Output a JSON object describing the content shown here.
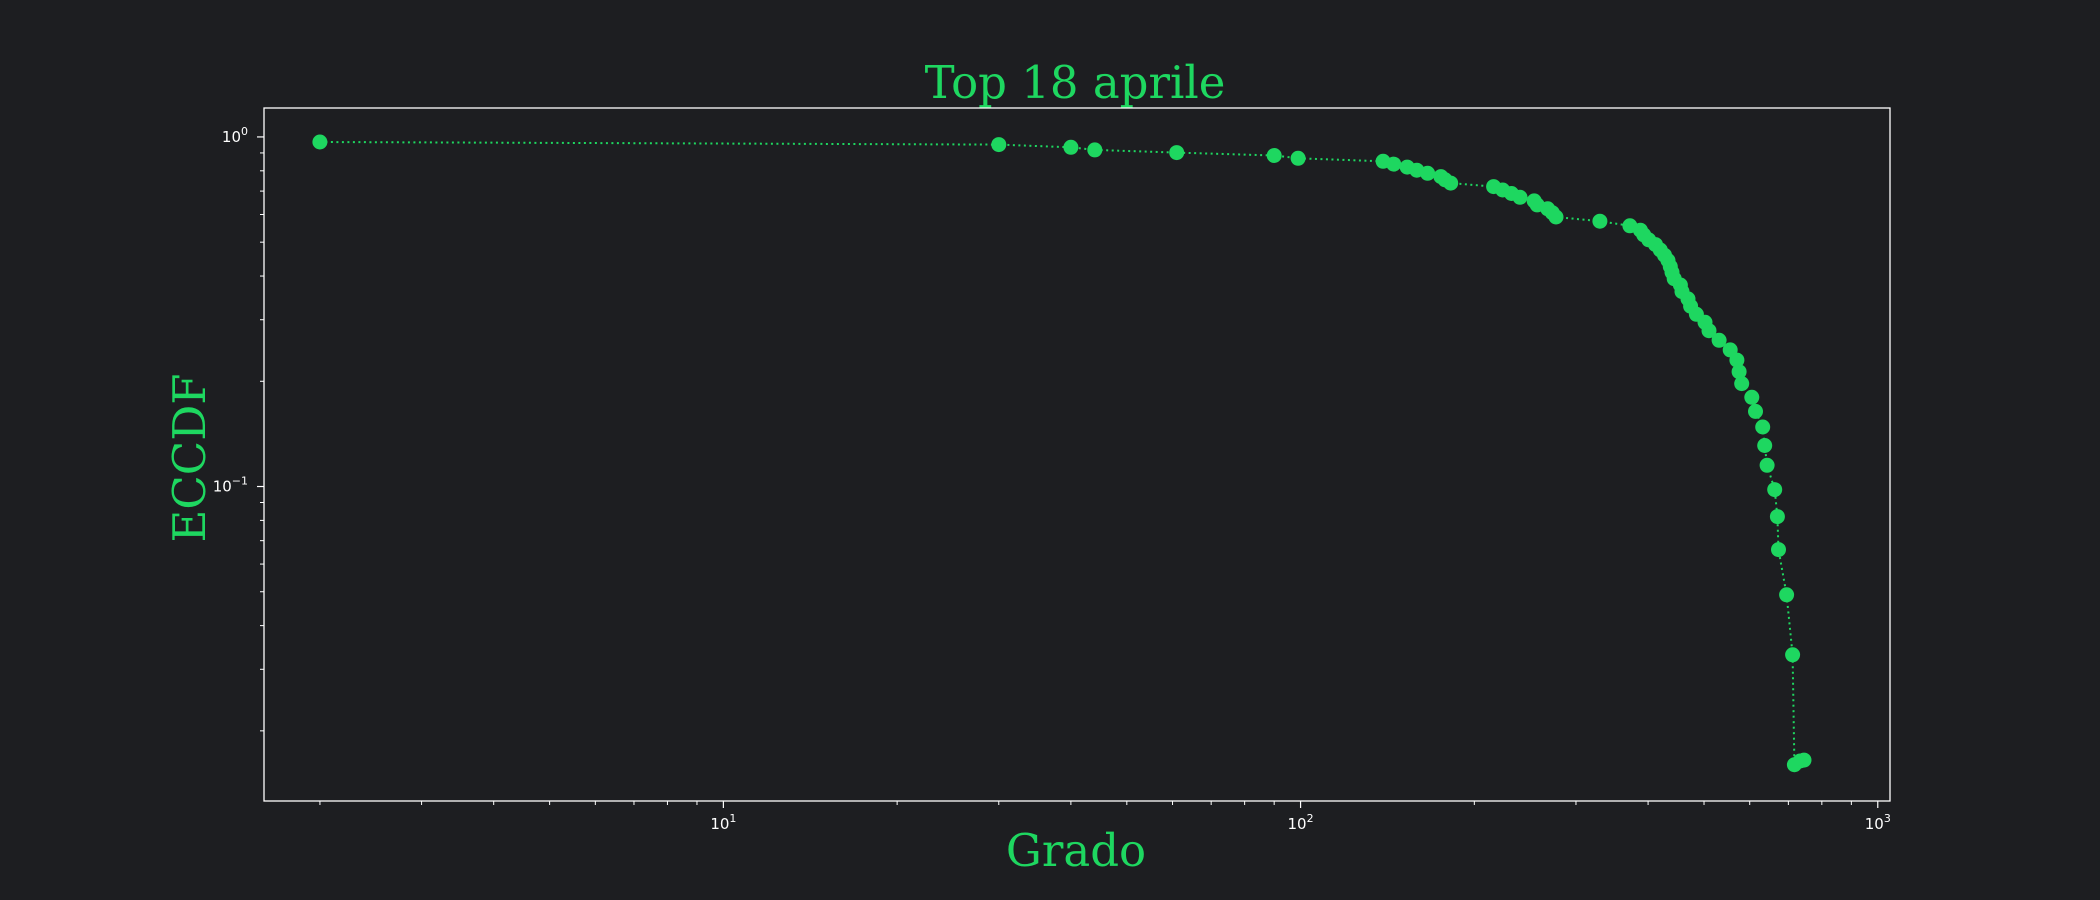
{
  "colors": {
    "background": "#1d1e21",
    "accent": "#1ed760",
    "axis": "#ffffff",
    "tick_text": "#ffffff"
  },
  "chart_data": {
    "type": "scatter",
    "title": "Top 18 aprile",
    "xlabel": "Grado",
    "ylabel": "ECCDF",
    "x_scale": "log",
    "y_scale": "log",
    "xlim": [
      1.6,
      1050
    ],
    "ylim": [
      0.0126,
      1.21
    ],
    "grid": false,
    "line_style": "dotted",
    "marker": "circle",
    "x_ticks": [
      {
        "value": 10,
        "label": "10",
        "exp": "1"
      },
      {
        "value": 100,
        "label": "10",
        "exp": "2"
      },
      {
        "value": 1000,
        "label": "10",
        "exp": "3"
      }
    ],
    "y_ticks": [
      {
        "value": 1,
        "label": "10",
        "exp": "0"
      },
      {
        "value": 0.1,
        "label": "10",
        "exp": "−1"
      }
    ],
    "series": [
      {
        "x": [
          2,
          30,
          40,
          44,
          61,
          90,
          99,
          139,
          145,
          153,
          159,
          166,
          175,
          178,
          182,
          216,
          224,
          232,
          240,
          254,
          257,
          268,
          273,
          277,
          330,
          372,
          388,
          393,
          401,
          412,
          420,
          427,
          433,
          437,
          440,
          444,
          455,
          458,
          469,
          474,
          485,
          502,
          510,
          531,
          555,
          570,
          575,
          581,
          605,
          614,
          632,
          637,
          643,
          663,
          670,
          673,
          695,
          712,
          717,
          734,
          745
        ],
        "y": [
          0.967,
          0.951,
          0.934,
          0.918,
          0.902,
          0.885,
          0.869,
          0.852,
          0.836,
          0.82,
          0.803,
          0.787,
          0.77,
          0.754,
          0.738,
          0.721,
          0.705,
          0.689,
          0.672,
          0.656,
          0.639,
          0.623,
          0.607,
          0.59,
          0.574,
          0.557,
          0.541,
          0.525,
          0.508,
          0.492,
          0.475,
          0.459,
          0.443,
          0.426,
          0.41,
          0.393,
          0.377,
          0.361,
          0.344,
          0.328,
          0.311,
          0.295,
          0.279,
          0.262,
          0.246,
          0.23,
          0.213,
          0.197,
          0.18,
          0.164,
          0.148,
          0.131,
          0.115,
          0.098,
          0.082,
          0.066,
          0.049,
          0.033,
          0.016,
          0.0164,
          0.0165
        ]
      }
    ]
  }
}
